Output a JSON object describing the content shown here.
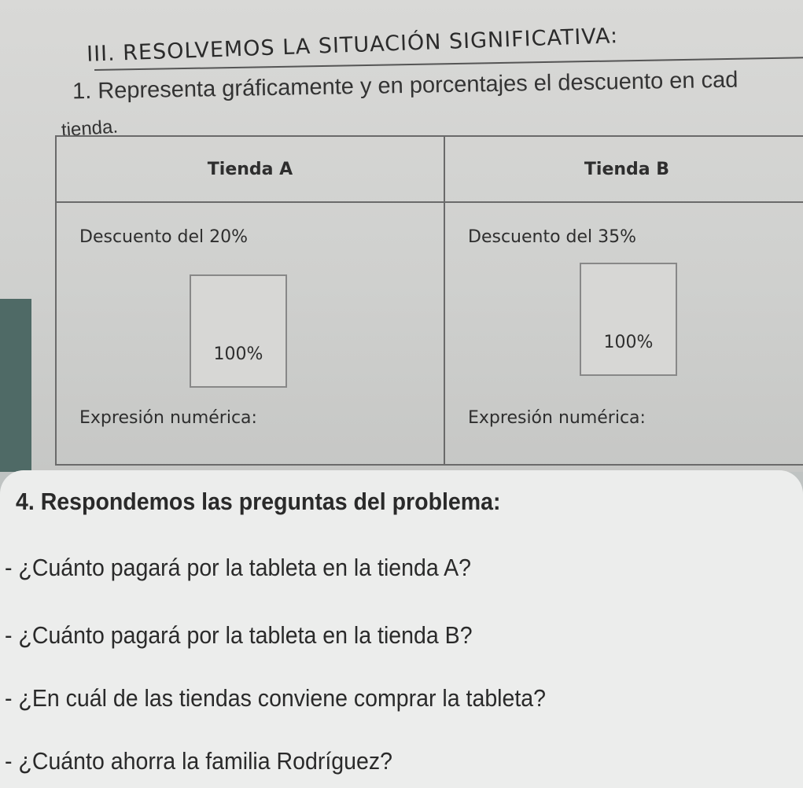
{
  "section": {
    "heading": "III. RESOLVEMOS LA SITUACIÓN SIGNIFICATIVA:",
    "instruction_line1": "1. Representa gráficamente y en porcentajes el descuento en cad",
    "instruction_line2": "tienda."
  },
  "table": {
    "columns": [
      {
        "header": "Tienda A",
        "discount": "Descuento del 20%",
        "box_label": "100%",
        "expression_label": "Expresión numérica:"
      },
      {
        "header": "Tienda B",
        "discount": "Descuento del 35%",
        "box_label": "100%",
        "expression_label": "Expresión numérica:"
      }
    ]
  },
  "questions": {
    "title": "4. Respondemos las preguntas del problema:",
    "items": [
      "- ¿Cuánto pagará por la tableta en la tienda A?",
      "- ¿Cuánto pagará por la tableta en la tienda B?",
      "- ¿En cuál de las tiendas conviene comprar la tableta?",
      "- ¿Cuánto ahorra la familia Rodríguez?"
    ]
  }
}
